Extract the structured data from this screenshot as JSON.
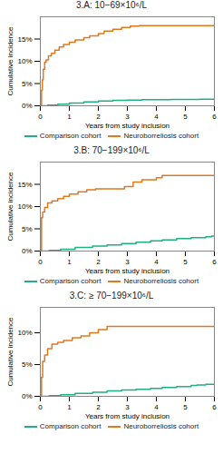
{
  "chart_data": [
    {
      "type": "step",
      "title": "3.A: 10−69×10⁶/L",
      "x_label": "Years from study inclusion",
      "y_label": "Cumulative incidence",
      "xlim": [
        0,
        6
      ],
      "xticks": [
        0,
        1,
        2,
        3,
        4,
        5,
        6
      ],
      "ylim": [
        0,
        20.0
      ],
      "yticks": [
        {
          "value": 0,
          "label": "0%"
        },
        {
          "value": 5,
          "label": "5%"
        },
        {
          "value": 10,
          "label": "10%"
        },
        {
          "value": 15,
          "label": "15%"
        }
      ],
      "grid": false,
      "legend": "bottom",
      "series": [
        {
          "name": "Comparison cohort",
          "color": "#1FAF80",
          "x": [
            0,
            0.25,
            0.6,
            1.0,
            1.5,
            2.0,
            2.5,
            3.0,
            3.5,
            4.5,
            5.5,
            6.0
          ],
          "values": [
            0,
            0.15,
            0.35,
            0.6,
            0.85,
            1.05,
            1.2,
            1.3,
            1.4,
            1.45,
            1.5,
            1.5
          ]
        },
        {
          "name": "Neuroborreliosis cohort",
          "color": "#E07820",
          "x": [
            0,
            0.04,
            0.07,
            0.1,
            0.15,
            0.2,
            0.28,
            0.38,
            0.5,
            0.65,
            0.8,
            1.0,
            1.2,
            1.5,
            1.7,
            2.0,
            2.2,
            2.5,
            2.8,
            3.1,
            3.4,
            3.8,
            4.0,
            6.0
          ],
          "values": [
            0.0,
            3.5,
            5.8,
            8.2,
            9.8,
            10.3,
            11.2,
            11.8,
            12.5,
            13.2,
            13.8,
            14.3,
            14.8,
            15.3,
            15.7,
            16.2,
            16.8,
            17.2,
            17.6,
            17.9,
            18.0,
            18.0,
            18.0,
            18.0
          ]
        }
      ]
    },
    {
      "type": "step",
      "title": "3.B: 70−199×10⁶/L",
      "x_label": "Years from study inclusion",
      "y_label": "Cumulative incidence",
      "xlim": [
        0,
        6
      ],
      "xticks": [
        0,
        1,
        2,
        3,
        4,
        5,
        6
      ],
      "ylim": [
        0,
        20.0
      ],
      "yticks": [
        {
          "value": 0,
          "label": "0%"
        },
        {
          "value": 5,
          "label": "5%"
        },
        {
          "value": 10,
          "label": "10%"
        },
        {
          "value": 15,
          "label": "15%"
        }
      ],
      "grid": false,
      "legend": "bottom",
      "series": [
        {
          "name": "Comparison cohort",
          "color": "#1FAF80",
          "x": [
            0,
            0.3,
            0.7,
            1.2,
            1.8,
            2.3,
            2.8,
            3.3,
            3.8,
            4.2,
            4.7,
            5.2,
            5.7,
            5.9,
            6.0
          ],
          "values": [
            0,
            0.15,
            0.4,
            0.8,
            1.1,
            1.4,
            1.7,
            2.0,
            2.3,
            2.5,
            2.8,
            3.0,
            3.2,
            3.35,
            3.4
          ]
        },
        {
          "name": "Neuroborreliosis cohort",
          "color": "#E07820",
          "x": [
            0,
            0.04,
            0.08,
            0.15,
            0.25,
            0.4,
            0.6,
            0.8,
            1.0,
            1.3,
            1.6,
            1.9,
            2.5,
            2.9,
            3.2,
            3.5,
            4.0,
            4.2,
            4.5,
            5.8,
            6.0
          ],
          "values": [
            0.0,
            7.5,
            8.8,
            9.8,
            10.8,
            11.3,
            11.8,
            12.3,
            12.8,
            13.3,
            13.8,
            14.0,
            14.0,
            14.5,
            15.5,
            16.0,
            16.5,
            17.0,
            17.0,
            17.0,
            17.0
          ]
        }
      ]
    },
    {
      "type": "step",
      "title": "3.C: ≥ 70−199×10⁶/L",
      "x_label": "Years from study inclusion",
      "y_label": "Cumulative incidence",
      "xlim": [
        0,
        6
      ],
      "xticks": [
        0,
        1,
        2,
        3,
        4,
        5,
        6
      ],
      "ylim": [
        0,
        14.0
      ],
      "yticks": [
        {
          "value": 0,
          "label": "0%"
        },
        {
          "value": 5,
          "label": "5%"
        },
        {
          "value": 10,
          "label": "10%"
        }
      ],
      "grid": false,
      "legend": "bottom",
      "series": [
        {
          "name": "Comparison cohort",
          "color": "#1FAF80",
          "x": [
            0,
            0.3,
            0.7,
            1.2,
            1.8,
            2.3,
            2.8,
            3.3,
            3.8,
            4.2,
            4.7,
            5.2,
            5.4,
            5.7,
            6.0
          ],
          "values": [
            0,
            0.1,
            0.25,
            0.45,
            0.65,
            0.85,
            1.0,
            1.1,
            1.25,
            1.4,
            1.55,
            1.7,
            1.8,
            1.9,
            2.0
          ]
        },
        {
          "name": "Neuroborreliosis cohort",
          "color": "#E07820",
          "x": [
            0,
            0.04,
            0.08,
            0.15,
            0.25,
            0.4,
            0.6,
            0.8,
            1.1,
            1.4,
            1.7,
            2.0,
            2.3,
            2.7,
            3.0,
            3.2,
            4.0,
            6.0
          ],
          "values": [
            0.0,
            3.0,
            5.5,
            6.5,
            7.5,
            8.2,
            8.5,
            8.8,
            9.2,
            9.5,
            10.0,
            10.5,
            11.0,
            11.0,
            11.0,
            11.0,
            11.0,
            11.0
          ]
        }
      ]
    }
  ]
}
